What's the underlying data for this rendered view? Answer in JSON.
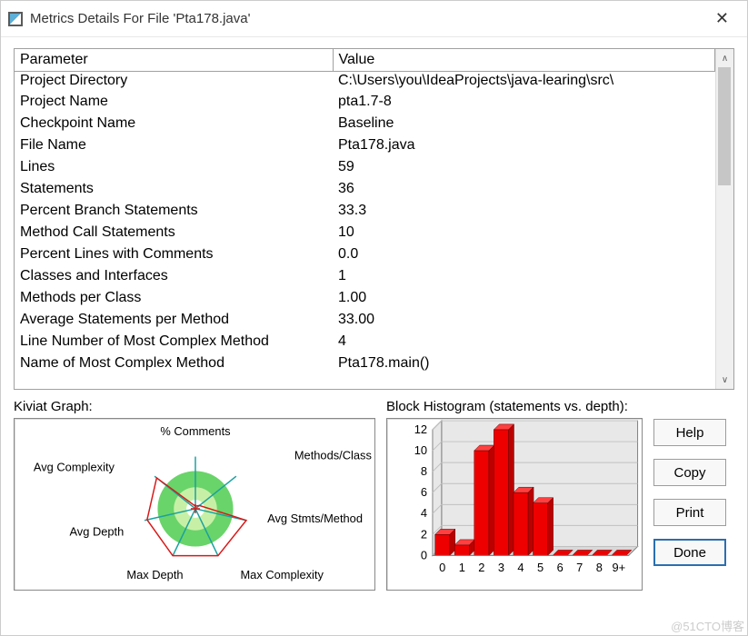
{
  "window": {
    "title": "Metrics Details For File 'Pta178.java'"
  },
  "table": {
    "columns": [
      "Parameter",
      "Value"
    ],
    "rows": [
      [
        "Project Directory",
        "C:\\Users\\you\\IdeaProjects\\java-learing\\src\\"
      ],
      [
        "Project Name",
        "pta1.7-8"
      ],
      [
        "Checkpoint Name",
        "Baseline"
      ],
      [
        "File Name",
        "Pta178.java"
      ],
      [
        "Lines",
        "59"
      ],
      [
        "Statements",
        "36"
      ],
      [
        "Percent Branch Statements",
        "33.3"
      ],
      [
        "Method Call Statements",
        "10"
      ],
      [
        "Percent Lines with Comments",
        "0.0"
      ],
      [
        "Classes and Interfaces",
        "1"
      ],
      [
        "Methods per Class",
        "1.00"
      ],
      [
        "Average Statements per Method",
        "33.00"
      ],
      [
        "Line Number of Most Complex Method",
        "4"
      ],
      [
        "Name of Most Complex Method",
        "Pta178.main()"
      ]
    ]
  },
  "kiviat": {
    "title": "Kiviat Graph:",
    "axes": [
      "% Comments",
      "Methods/Class",
      "Avg Stmts/Method",
      "Max Complexity",
      "Max Depth",
      "Avg Depth",
      "Avg Complexity"
    ],
    "ring_outer_color": "#69d469",
    "ring_inner_color": "#c7f0a6",
    "axis_color": "#1aa0a0",
    "poly_color": "#d81818",
    "center_cross_color": "#d81818",
    "text_color": "#000000",
    "background": "#ffffff",
    "values": [
      0.05,
      0.1,
      1.0,
      1.0,
      1.0,
      0.95,
      0.95
    ]
  },
  "histogram": {
    "title": "Block Histogram (statements vs. depth):",
    "categories": [
      "0",
      "1",
      "2",
      "3",
      "4",
      "5",
      "6",
      "7",
      "8",
      "9+"
    ],
    "values": [
      2,
      1,
      10,
      12,
      6,
      5,
      0,
      0,
      0,
      0
    ],
    "ymax": 12,
    "ytick_step": 2,
    "bar_color": "#ee0000",
    "bar_side_color": "#bb0000",
    "bar_top_color": "#ff4040",
    "grid_color": "#c0c0c0",
    "back_wall_color": "#e8e8e8",
    "floor_color": "#d8d8d8",
    "text_color": "#000000",
    "background": "#ffffff"
  },
  "buttons": {
    "help": "Help",
    "copy": "Copy",
    "print": "Print",
    "done": "Done"
  },
  "watermark": "@51CTO博客"
}
